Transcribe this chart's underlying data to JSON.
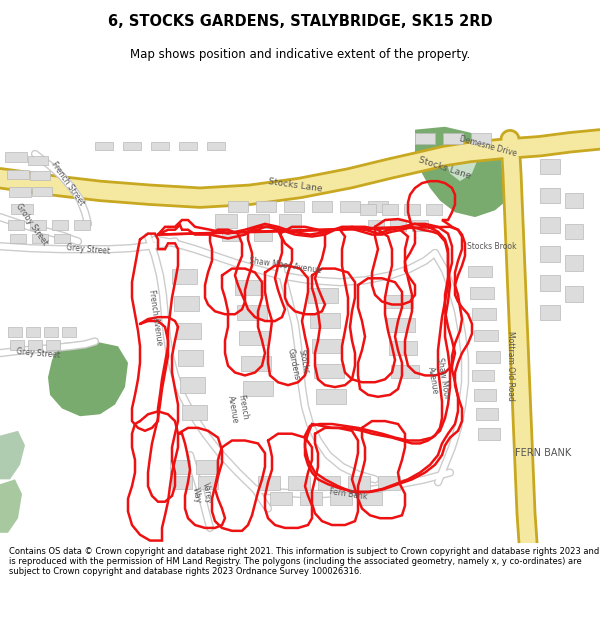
{
  "title": "6, STOCKS GARDENS, STALYBRIDGE, SK15 2RD",
  "subtitle": "Map shows position and indicative extent of the property.",
  "footer": "Contains OS data © Crown copyright and database right 2021. This information is subject to Crown copyright and database rights 2023 and is reproduced with the permission of HM Land Registry. The polygons (including the associated geometry, namely x, y co-ordinates) are subject to Crown copyright and database rights 2023 Ordnance Survey 100026316.",
  "bg_color": "#ffffff",
  "map_bg": "#ffffff",
  "road_yellow": "#f0d875",
  "road_yellow_light": "#f8edb0",
  "green_area": "#7aab6e",
  "green_light": "#a8c8a0",
  "building_fill": "#dcdcdc",
  "building_stroke": "#b8b8b8",
  "red_outline": "#ee1111",
  "text_color": "#333333",
  "label_color": "#555555"
}
